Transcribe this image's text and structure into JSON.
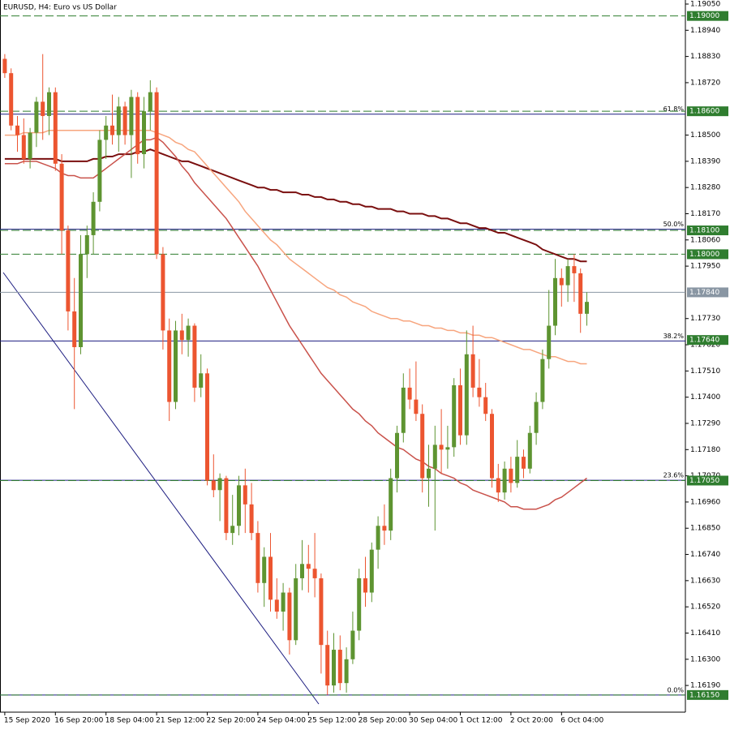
{
  "chart_data": {
    "type": "candlestick",
    "title": "EURUSD, H4:  Euro vs US Dollar",
    "up_color": "#5e9431",
    "down_color": "#ec5530",
    "categories": [
      "15 Sep 2020",
      null,
      null,
      null,
      null,
      null,
      null,
      null,
      "16 Sep 20:00",
      null,
      null,
      null,
      null,
      null,
      null,
      null,
      "18 Sep 04:00",
      null,
      null,
      null,
      null,
      null,
      null,
      null,
      "21 Sep 12:00",
      null,
      null,
      null,
      null,
      null,
      null,
      null,
      "22 Sep 20:00",
      null,
      null,
      null,
      null,
      null,
      null,
      null,
      "24 Sep 04:00",
      null,
      null,
      null,
      null,
      null,
      null,
      null,
      "25 Sep 12:00",
      null,
      null,
      null,
      null,
      null,
      null,
      null,
      "28 Sep 20:00",
      null,
      null,
      null,
      null,
      null,
      null,
      null,
      "30 Sep 04:00",
      null,
      null,
      null,
      null,
      null,
      null,
      null,
      "1 Oct 12:00",
      null,
      null,
      null,
      null,
      null,
      null,
      null,
      "2 Oct 20:00",
      null,
      null,
      null,
      null,
      null,
      null,
      null,
      "6 Oct 04:00",
      null,
      null,
      null,
      null
    ],
    "ohlc": [
      [
        1.1882,
        1.1884,
        1.1874,
        1.1876
      ],
      [
        1.1876,
        1.1878,
        1.1852,
        1.1854
      ],
      [
        1.1854,
        1.1858,
        1.1843,
        1.185
      ],
      [
        1.185,
        1.1857,
        1.1838,
        1.184
      ],
      [
        1.184,
        1.1853,
        1.1836,
        1.1851
      ],
      [
        1.1851,
        1.1866,
        1.1845,
        1.1864
      ],
      [
        1.1864,
        1.1884,
        1.1848,
        1.1858
      ],
      [
        1.1858,
        1.187,
        1.185,
        1.1868
      ],
      [
        1.1868,
        1.187,
        1.1835,
        1.1838
      ],
      [
        1.1838,
        1.1842,
        1.18,
        1.181
      ],
      [
        1.181,
        1.1812,
        1.1768,
        1.1776
      ],
      [
        1.1776,
        1.179,
        1.1735,
        1.1761
      ],
      [
        1.1761,
        1.1808,
        1.1758,
        1.18
      ],
      [
        1.18,
        1.1812,
        1.179,
        1.1808
      ],
      [
        1.1808,
        1.1826,
        1.18,
        1.1822
      ],
      [
        1.1822,
        1.1852,
        1.1818,
        1.1848
      ],
      [
        1.1848,
        1.1858,
        1.184,
        1.1854
      ],
      [
        1.1854,
        1.1867,
        1.1846,
        1.185
      ],
      [
        1.185,
        1.1866,
        1.1843,
        1.1862
      ],
      [
        1.1862,
        1.1864,
        1.1846,
        1.185
      ],
      [
        1.185,
        1.1869,
        1.1832,
        1.1866
      ],
      [
        1.1866,
        1.1868,
        1.1838,
        1.1842
      ],
      [
        1.1842,
        1.1866,
        1.1836,
        1.186
      ],
      [
        1.186,
        1.1873,
        1.1852,
        1.1868
      ],
      [
        1.1868,
        1.187,
        1.1798,
        1.18
      ],
      [
        1.18,
        1.1803,
        1.176,
        1.1768
      ],
      [
        1.1768,
        1.1773,
        1.173,
        1.1738
      ],
      [
        1.1738,
        1.1772,
        1.1735,
        1.1768
      ],
      [
        1.1768,
        1.1775,
        1.1758,
        1.1764
      ],
      [
        1.1764,
        1.1773,
        1.1757,
        1.177
      ],
      [
        1.177,
        1.1771,
        1.1738,
        1.1744
      ],
      [
        1.1744,
        1.1758,
        1.174,
        1.175
      ],
      [
        1.175,
        1.1752,
        1.1703,
        1.1705
      ],
      [
        1.1705,
        1.1716,
        1.1698,
        1.1701
      ],
      [
        1.1701,
        1.1708,
        1.1688,
        1.1706
      ],
      [
        1.1706,
        1.1707,
        1.168,
        1.1683
      ],
      [
        1.1683,
        1.1699,
        1.1678,
        1.1686
      ],
      [
        1.1686,
        1.1707,
        1.1682,
        1.1703
      ],
      [
        1.1703,
        1.171,
        1.1683,
        1.1695
      ],
      [
        1.1695,
        1.1704,
        1.168,
        1.1683
      ],
      [
        1.1683,
        1.1688,
        1.1658,
        1.1662
      ],
      [
        1.1662,
        1.1677,
        1.1652,
        1.1673
      ],
      [
        1.1673,
        1.1683,
        1.165,
        1.1655
      ],
      [
        1.1655,
        1.1664,
        1.1647,
        1.165
      ],
      [
        1.165,
        1.1662,
        1.1642,
        1.1658
      ],
      [
        1.1658,
        1.166,
        1.1632,
        1.1638
      ],
      [
        1.1638,
        1.167,
        1.1636,
        1.1664
      ],
      [
        1.1664,
        1.168,
        1.1659,
        1.167
      ],
      [
        1.167,
        1.1678,
        1.1658,
        1.1668
      ],
      [
        1.1668,
        1.1683,
        1.1656,
        1.1664
      ],
      [
        1.1664,
        1.1666,
        1.1624,
        1.1636
      ],
      [
        1.1636,
        1.1642,
        1.1615,
        1.1619
      ],
      [
        1.1619,
        1.1641,
        1.1616,
        1.1634
      ],
      [
        1.1634,
        1.164,
        1.1617,
        1.162
      ],
      [
        1.162,
        1.1635,
        1.1616,
        1.163
      ],
      [
        1.163,
        1.165,
        1.1628,
        1.1642
      ],
      [
        1.1642,
        1.1668,
        1.1638,
        1.1664
      ],
      [
        1.1664,
        1.1673,
        1.1652,
        1.1658
      ],
      [
        1.1658,
        1.1679,
        1.1654,
        1.1676
      ],
      [
        1.1676,
        1.169,
        1.1668,
        1.1686
      ],
      [
        1.1686,
        1.1695,
        1.1678,
        1.1684
      ],
      [
        1.1684,
        1.171,
        1.168,
        1.1706
      ],
      [
        1.1706,
        1.1728,
        1.17,
        1.1725
      ],
      [
        1.1725,
        1.175,
        1.1721,
        1.1744
      ],
      [
        1.1744,
        1.1752,
        1.1735,
        1.1739
      ],
      [
        1.1739,
        1.1755,
        1.173,
        1.1733
      ],
      [
        1.1733,
        1.1737,
        1.17,
        1.1706
      ],
      [
        1.1706,
        1.172,
        1.1694,
        1.171
      ],
      [
        1.171,
        1.1728,
        1.1684,
        1.172
      ],
      [
        1.172,
        1.1735,
        1.1708,
        1.1718
      ],
      [
        1.1718,
        1.1728,
        1.171,
        1.1719
      ],
      [
        1.1719,
        1.1748,
        1.1715,
        1.1745
      ],
      [
        1.1745,
        1.1752,
        1.172,
        1.1724
      ],
      [
        1.1724,
        1.1768,
        1.172,
        1.1758
      ],
      [
        1.1758,
        1.177,
        1.174,
        1.1744
      ],
      [
        1.1744,
        1.1756,
        1.1736,
        1.174
      ],
      [
        1.174,
        1.1746,
        1.173,
        1.1733
      ],
      [
        1.1733,
        1.1735,
        1.1702,
        1.1706
      ],
      [
        1.1706,
        1.1712,
        1.1696,
        1.17
      ],
      [
        1.17,
        1.1713,
        1.1697,
        1.171
      ],
      [
        1.171,
        1.1715,
        1.17,
        1.1704
      ],
      [
        1.1704,
        1.1722,
        1.1702,
        1.1715
      ],
      [
        1.1715,
        1.1718,
        1.1706,
        1.171
      ],
      [
        1.171,
        1.1728,
        1.1708,
        1.1725
      ],
      [
        1.1725,
        1.1742,
        1.172,
        1.1738
      ],
      [
        1.1738,
        1.176,
        1.1735,
        1.1756
      ],
      [
        1.1756,
        1.1785,
        1.1752,
        1.177
      ],
      [
        1.177,
        1.1798,
        1.1766,
        1.179
      ],
      [
        1.179,
        1.1794,
        1.1778,
        1.1787
      ],
      [
        1.1787,
        1.1798,
        1.178,
        1.1795
      ],
      [
        1.1795,
        1.18,
        1.178,
        1.1792
      ],
      [
        1.1792,
        1.1794,
        1.1767,
        1.1775
      ],
      [
        1.1775,
        1.1784,
        1.177,
        1.178
      ]
    ],
    "lines": [
      {
        "color": "#7a0f0f",
        "values": [
          1.184,
          1.184,
          1.184,
          1.184,
          1.184,
          1.184,
          1.184,
          1.184,
          1.184,
          1.1839,
          1.1839,
          1.1839,
          1.1839,
          1.1839,
          1.184,
          1.184,
          1.1841,
          1.1841,
          1.1842,
          1.1842,
          1.1842,
          1.1843,
          1.1843,
          1.1844,
          1.1843,
          1.1842,
          1.1841,
          1.184,
          1.1839,
          1.1839,
          1.1838,
          1.1837,
          1.1836,
          1.1835,
          1.1834,
          1.1833,
          1.1832,
          1.1831,
          1.183,
          1.1829,
          1.1828,
          1.1828,
          1.1827,
          1.1827,
          1.1826,
          1.1826,
          1.1826,
          1.1825,
          1.1825,
          1.1824,
          1.1824,
          1.1823,
          1.1823,
          1.1822,
          1.1822,
          1.1821,
          1.1821,
          1.182,
          1.182,
          1.1819,
          1.1819,
          1.1819,
          1.1818,
          1.1818,
          1.1817,
          1.1817,
          1.1817,
          1.1816,
          1.1816,
          1.1815,
          1.1815,
          1.1814,
          1.1813,
          1.1813,
          1.1812,
          1.1811,
          1.1811,
          1.181,
          1.1809,
          1.1809,
          1.1808,
          1.1807,
          1.1806,
          1.1805,
          1.1804,
          1.1802,
          1.1801,
          1.18,
          1.1799,
          1.1798,
          1.1798,
          1.1797,
          1.1797
        ]
      },
      {
        "color": "#f7a57e",
        "values": [
          1.185,
          1.185,
          1.185,
          1.1851,
          1.1851,
          1.1851,
          1.1851,
          1.1852,
          1.1852,
          1.1852,
          1.1852,
          1.1852,
          1.1852,
          1.1852,
          1.1852,
          1.1852,
          1.1852,
          1.1852,
          1.1852,
          1.1852,
          1.1852,
          1.1852,
          1.1852,
          1.1852,
          1.1851,
          1.185,
          1.1849,
          1.1847,
          1.1846,
          1.1844,
          1.1843,
          1.184,
          1.1837,
          1.1834,
          1.1831,
          1.1828,
          1.1825,
          1.1822,
          1.1818,
          1.1815,
          1.1812,
          1.1809,
          1.1806,
          1.1804,
          1.1801,
          1.1798,
          1.1796,
          1.1794,
          1.1792,
          1.179,
          1.1788,
          1.1786,
          1.1785,
          1.1783,
          1.1782,
          1.178,
          1.1779,
          1.1778,
          1.1776,
          1.1775,
          1.1774,
          1.1773,
          1.1773,
          1.1772,
          1.1772,
          1.1771,
          1.177,
          1.177,
          1.1769,
          1.1769,
          1.1768,
          1.1768,
          1.1767,
          1.1767,
          1.1766,
          1.1766,
          1.1765,
          1.1765,
          1.1764,
          1.1763,
          1.1762,
          1.1761,
          1.176,
          1.176,
          1.1759,
          1.1758,
          1.1757,
          1.1757,
          1.1756,
          1.1755,
          1.1755,
          1.1754,
          1.1754
        ]
      },
      {
        "color": "#c9524b",
        "values": [
          1.1838,
          1.1838,
          1.1838,
          1.1839,
          1.1839,
          1.1839,
          1.1838,
          1.1837,
          1.1836,
          1.1834,
          1.1833,
          1.1833,
          1.1832,
          1.1832,
          1.1832,
          1.1834,
          1.1836,
          1.1838,
          1.184,
          1.1842,
          1.1844,
          1.1846,
          1.1848,
          1.1848,
          1.1849,
          1.1847,
          1.1844,
          1.1841,
          1.1837,
          1.1834,
          1.183,
          1.1827,
          1.1824,
          1.1821,
          1.1818,
          1.1815,
          1.1811,
          1.1807,
          1.1803,
          1.1799,
          1.1795,
          1.179,
          1.1785,
          1.178,
          1.1775,
          1.177,
          1.1766,
          1.1762,
          1.1758,
          1.1754,
          1.175,
          1.1747,
          1.1744,
          1.1741,
          1.1738,
          1.1735,
          1.1733,
          1.173,
          1.1728,
          1.1725,
          1.1723,
          1.1721,
          1.1719,
          1.1718,
          1.1716,
          1.1714,
          1.1713,
          1.1711,
          1.171,
          1.1708,
          1.1707,
          1.1706,
          1.1704,
          1.1703,
          1.1701,
          1.17,
          1.1699,
          1.1698,
          1.1697,
          1.1696,
          1.1694,
          1.1694,
          1.1693,
          1.1693,
          1.1693,
          1.1694,
          1.1695,
          1.1697,
          1.1698,
          1.17,
          1.1702,
          1.1704,
          1.1706
        ]
      }
    ],
    "ylim": [
      1.16078,
      1.19067
    ],
    "yticks": [
      {
        "value": 1.1905,
        "label": "1.19050"
      },
      {
        "value": 1.1894,
        "label": "1.18940"
      },
      {
        "value": 1.1883,
        "label": "1.18830"
      },
      {
        "value": 1.1872,
        "label": "1.18720"
      },
      {
        "value": 1.185,
        "label": "1.18500"
      },
      {
        "value": 1.1839,
        "label": "1.18390"
      },
      {
        "value": 1.1828,
        "label": "1.18280"
      },
      {
        "value": 1.1817,
        "label": "1.18170"
      },
      {
        "value": 1.1806,
        "label": "1.18060"
      },
      {
        "value": 1.1795,
        "label": "1.17950"
      },
      {
        "value": 1.1773,
        "label": "1.17730"
      },
      {
        "value": 1.1762,
        "label": "1.17620"
      },
      {
        "value": 1.1751,
        "label": "1.17510"
      },
      {
        "value": 1.174,
        "label": "1.17400"
      },
      {
        "value": 1.1729,
        "label": "1.17290"
      },
      {
        "value": 1.1718,
        "label": "1.17180"
      },
      {
        "value": 1.1707,
        "label": "1.17070"
      },
      {
        "value": 1.1696,
        "label": "1.16960"
      },
      {
        "value": 1.1685,
        "label": "1.16850"
      },
      {
        "value": 1.1674,
        "label": "1.16740"
      },
      {
        "value": 1.1663,
        "label": "1.16630"
      },
      {
        "value": 1.1652,
        "label": "1.16520"
      },
      {
        "value": 1.1641,
        "label": "1.16410"
      },
      {
        "value": 1.163,
        "label": "1.16300"
      },
      {
        "value": 1.1619,
        "label": "1.16190"
      }
    ],
    "levels": [
      {
        "value": 1.19,
        "label": "1.19000",
        "line": "dashed",
        "color": "#2f7d2f"
      },
      {
        "value": 1.186,
        "label": "1.18600",
        "line": "dashed",
        "color": "#2f7d2f"
      },
      {
        "value": 1.181,
        "label": "1.18100",
        "line": "dashed",
        "color": "#2f7d2f"
      },
      {
        "value": 1.18,
        "label": "1.18000",
        "line": "dashed",
        "color": "#2f7d2f"
      },
      {
        "value": 1.1784,
        "label": "1.17840",
        "line": "solid",
        "color": "#8996a3"
      },
      {
        "value": 1.1764,
        "label": "1.17640",
        "line": "none",
        "color": "#2f7d2f"
      },
      {
        "value": 1.1705,
        "label": "1.17050",
        "line": "dashed",
        "color": "#2f7d2f"
      },
      {
        "value": 1.1615,
        "label": "1.16150",
        "line": "dashed",
        "color": "#2f7d2f"
      }
    ],
    "fib_color": "#1c1c80",
    "fib": [
      {
        "level": {
          "value": 61.8,
          "label": "61.8%"
        },
        "price": 1.18588
      },
      {
        "level": {
          "value": 50,
          "label": "50.0%"
        },
        "price": 1.18105
      },
      {
        "level": {
          "value": 38.2,
          "label": "38.2%"
        },
        "price": 1.17636
      },
      {
        "level": {
          "value": 23.6,
          "label": "23.6%"
        },
        "price": 1.17051
      },
      {
        "level": {
          "value": 0,
          "label": "0.0%"
        },
        "price": 1.1615
      }
    ]
  }
}
